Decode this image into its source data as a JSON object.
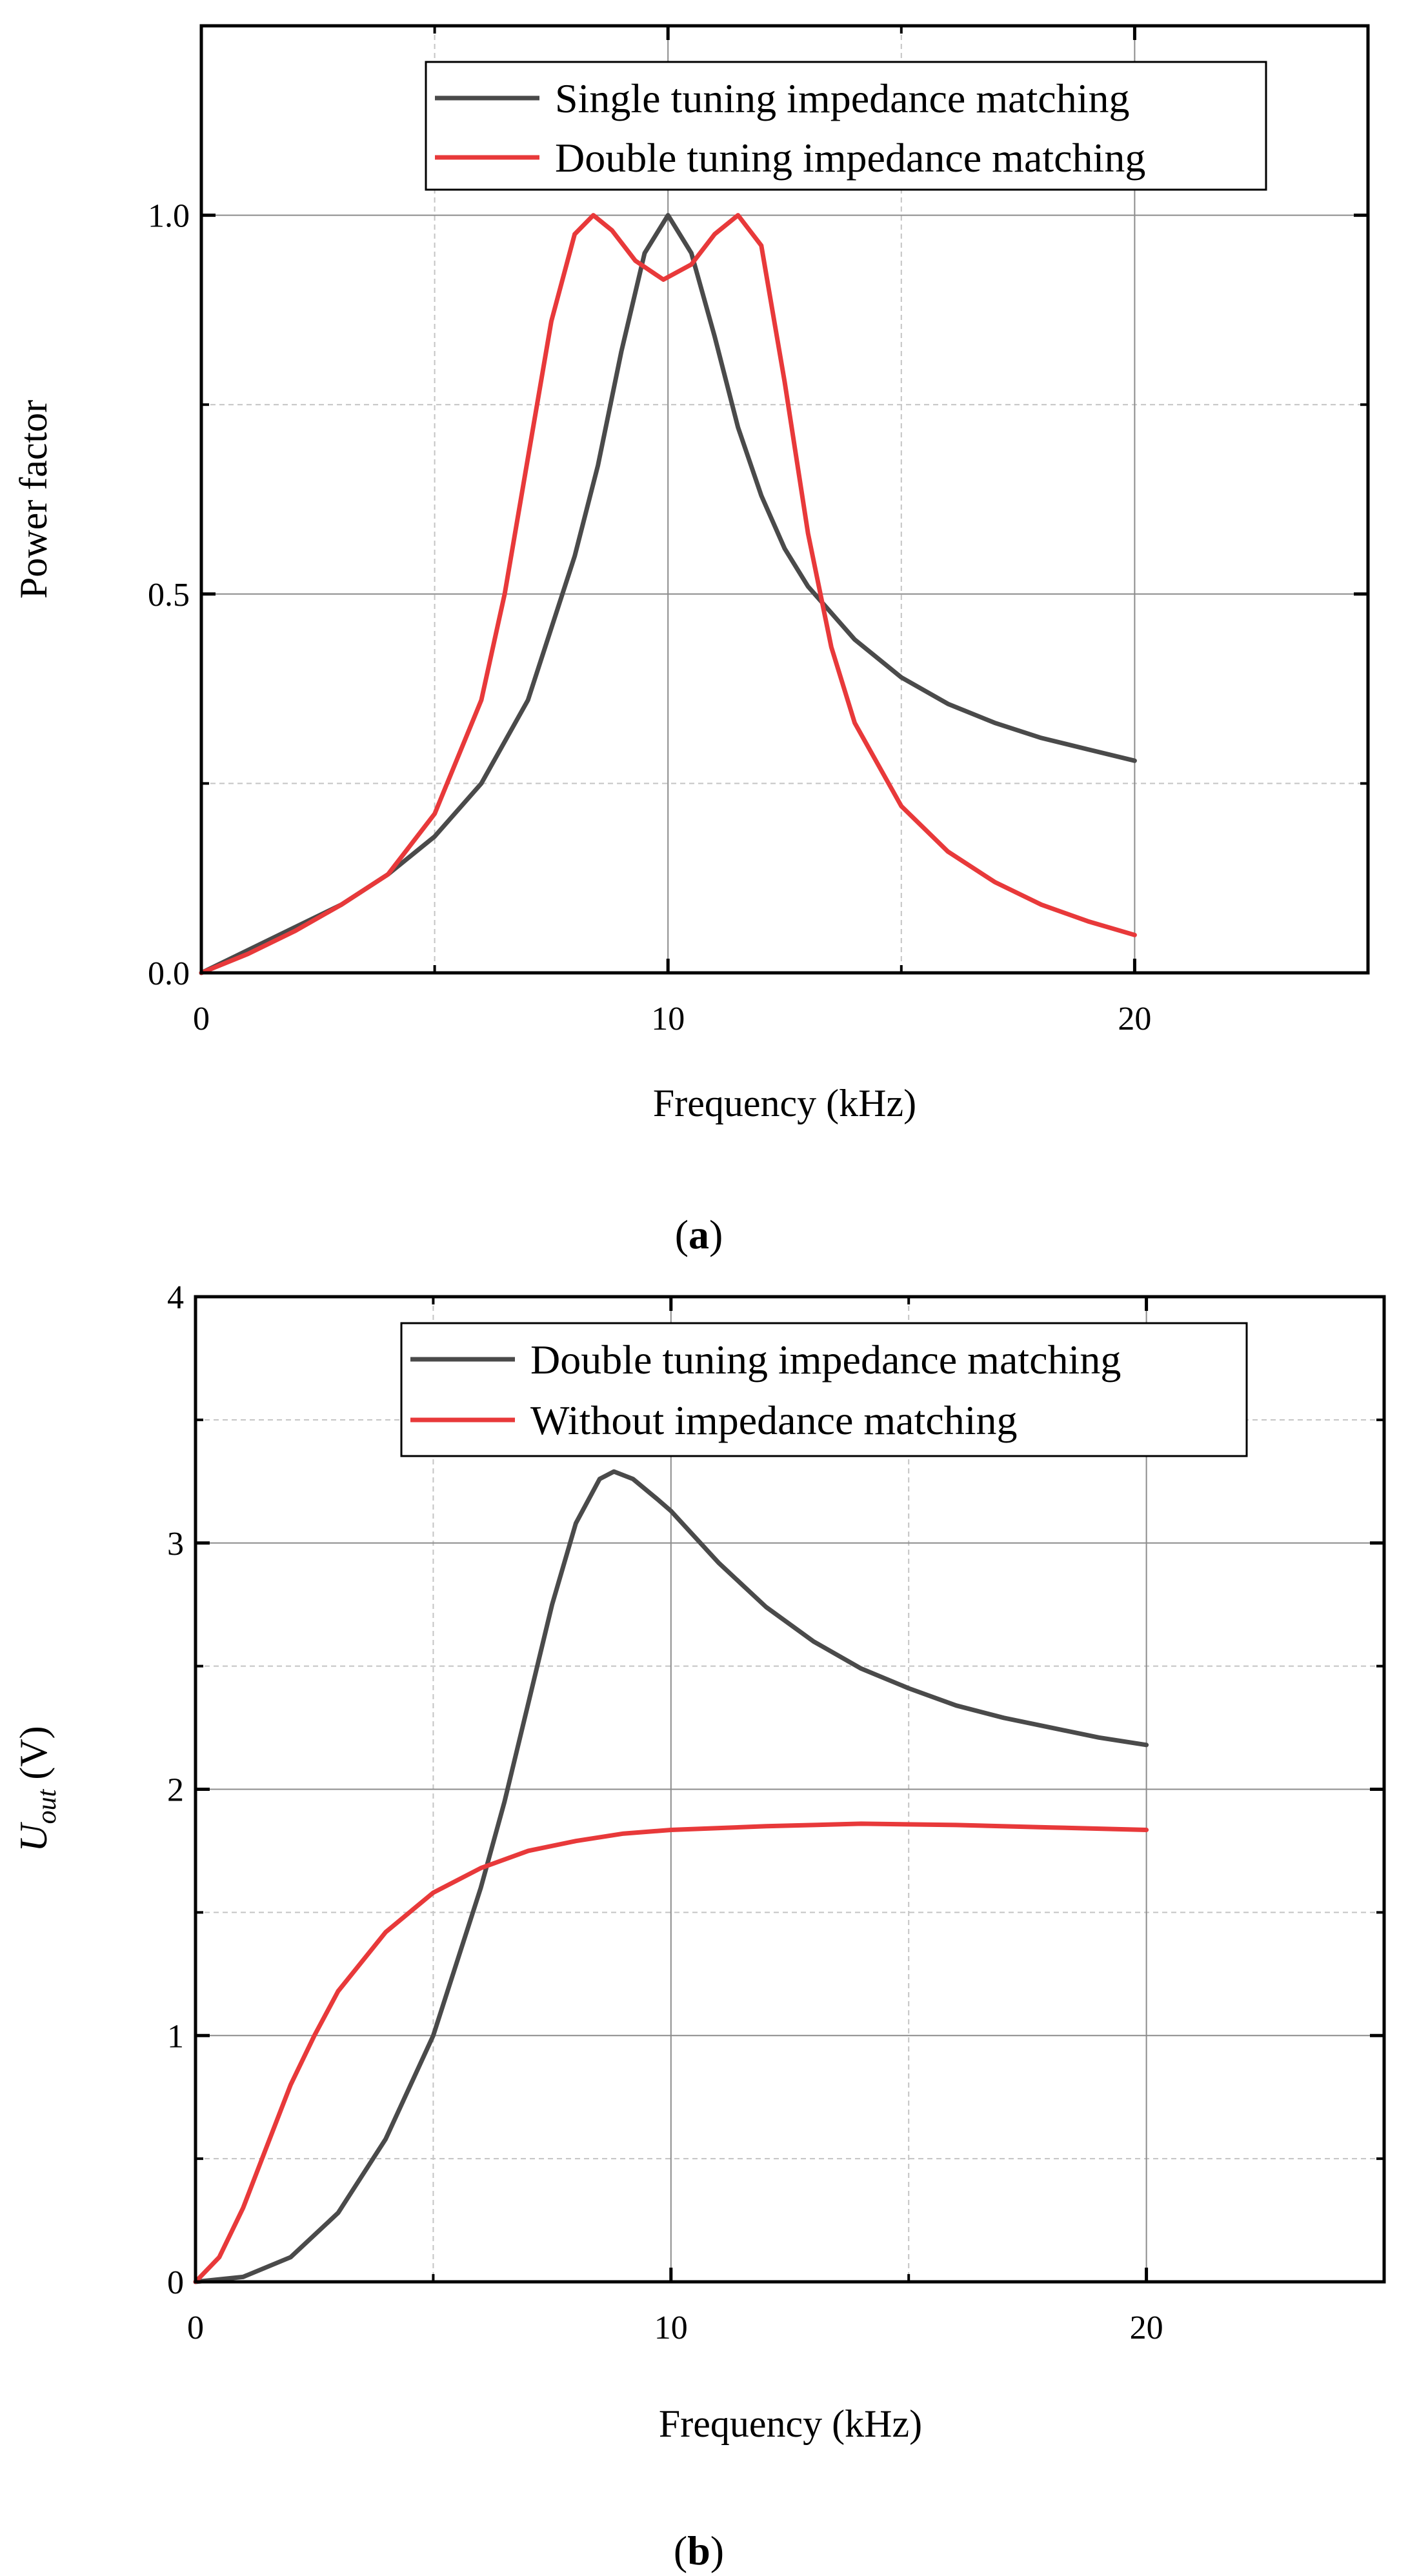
{
  "chart_data": [
    {
      "type": "line",
      "panel": "a",
      "caption": {
        "open": "(",
        "label": "a",
        "close": ")"
      },
      "xlabel": "Frequency (kHz)",
      "ylabel": "Power factor",
      "xlim": [
        0,
        25
      ],
      "ylim": [
        0,
        1.25
      ],
      "xticks": [
        0,
        10,
        20
      ],
      "xtick_labels": [
        "0",
        "10",
        "20"
      ],
      "yticks": [
        0,
        0.5,
        1.0
      ],
      "ytick_labels": [
        "0.0",
        "0.5",
        "1.0"
      ],
      "grid": true,
      "legend_position": "top-right",
      "series": [
        {
          "name": "Single tuning impedance matching",
          "color": "#4a4a4a",
          "points": [
            [
              0,
              0
            ],
            [
              1,
              0.03
            ],
            [
              2,
              0.06
            ],
            [
              3,
              0.09
            ],
            [
              4,
              0.13
            ],
            [
              5,
              0.18
            ],
            [
              6,
              0.25
            ],
            [
              7,
              0.36
            ],
            [
              8,
              0.55
            ],
            [
              8.5,
              0.67
            ],
            [
              9,
              0.82
            ],
            [
              9.5,
              0.95
            ],
            [
              10,
              1.0
            ],
            [
              10.5,
              0.95
            ],
            [
              11,
              0.84
            ],
            [
              11.5,
              0.72
            ],
            [
              12,
              0.63
            ],
            [
              12.5,
              0.56
            ],
            [
              13,
              0.51
            ],
            [
              14,
              0.44
            ],
            [
              15,
              0.39
            ],
            [
              16,
              0.355
            ],
            [
              17,
              0.33
            ],
            [
              18,
              0.31
            ],
            [
              19,
              0.295
            ],
            [
              20,
              0.28
            ]
          ]
        },
        {
          "name": "Double tuning impedance matching",
          "color": "#e8393a",
          "points": [
            [
              0,
              0
            ],
            [
              1,
              0.025
            ],
            [
              2,
              0.055
            ],
            [
              3,
              0.09
            ],
            [
              4,
              0.13
            ],
            [
              5,
              0.21
            ],
            [
              6,
              0.36
            ],
            [
              6.5,
              0.5
            ],
            [
              7,
              0.68
            ],
            [
              7.5,
              0.86
            ],
            [
              8,
              0.975
            ],
            [
              8.4,
              1.0
            ],
            [
              8.8,
              0.98
            ],
            [
              9.3,
              0.94
            ],
            [
              9.9,
              0.915
            ],
            [
              10.5,
              0.935
            ],
            [
              11,
              0.975
            ],
            [
              11.5,
              1.0
            ],
            [
              12,
              0.96
            ],
            [
              12.5,
              0.78
            ],
            [
              13,
              0.58
            ],
            [
              13.5,
              0.43
            ],
            [
              14,
              0.33
            ],
            [
              15,
              0.22
            ],
            [
              16,
              0.16
            ],
            [
              17,
              0.12
            ],
            [
              18,
              0.09
            ],
            [
              19,
              0.068
            ],
            [
              20,
              0.05
            ]
          ]
        }
      ]
    },
    {
      "type": "line",
      "panel": "b",
      "caption": {
        "open": "(",
        "label": "b",
        "close": ")"
      },
      "xlabel": "Frequency (kHz)",
      "ylabel": "U",
      "ylabel_sub": "out",
      "ylabel_unit": " (V)",
      "xlim": [
        0,
        25
      ],
      "ylim": [
        0,
        4
      ],
      "xticks": [
        0,
        10,
        20
      ],
      "xtick_labels": [
        "0",
        "10",
        "20"
      ],
      "yticks": [
        0,
        1,
        2,
        3,
        4
      ],
      "ytick_labels": [
        "0",
        "1",
        "2",
        "3",
        "4"
      ],
      "grid": true,
      "legend_position": "top-right",
      "series": [
        {
          "name": "Double tuning impedance matching",
          "color": "#4a4a4a",
          "points": [
            [
              0,
              0
            ],
            [
              1,
              0.02
            ],
            [
              2,
              0.1
            ],
            [
              3,
              0.28
            ],
            [
              4,
              0.58
            ],
            [
              5,
              1.0
            ],
            [
              6,
              1.6
            ],
            [
              6.5,
              1.95
            ],
            [
              7,
              2.35
            ],
            [
              7.5,
              2.75
            ],
            [
              8,
              3.08
            ],
            [
              8.5,
              3.26
            ],
            [
              8.8,
              3.29
            ],
            [
              9.2,
              3.26
            ],
            [
              9.7,
              3.18
            ],
            [
              10,
              3.13
            ],
            [
              11,
              2.92
            ],
            [
              12,
              2.74
            ],
            [
              13,
              2.6
            ],
            [
              14,
              2.49
            ],
            [
              15,
              2.41
            ],
            [
              16,
              2.34
            ],
            [
              17,
              2.29
            ],
            [
              18,
              2.25
            ],
            [
              19,
              2.21
            ],
            [
              20,
              2.18
            ]
          ]
        },
        {
          "name": "Without impedance matching",
          "color": "#e8393a",
          "points": [
            [
              0,
              0
            ],
            [
              0.5,
              0.1
            ],
            [
              1,
              0.3
            ],
            [
              1.5,
              0.55
            ],
            [
              2,
              0.8
            ],
            [
              2.5,
              1.0
            ],
            [
              3,
              1.18
            ],
            [
              4,
              1.42
            ],
            [
              5,
              1.58
            ],
            [
              6,
              1.68
            ],
            [
              7,
              1.75
            ],
            [
              8,
              1.79
            ],
            [
              9,
              1.82
            ],
            [
              10,
              1.835
            ],
            [
              12,
              1.85
            ],
            [
              14,
              1.86
            ],
            [
              16,
              1.855
            ],
            [
              18,
              1.845
            ],
            [
              20,
              1.835
            ]
          ]
        }
      ]
    }
  ]
}
